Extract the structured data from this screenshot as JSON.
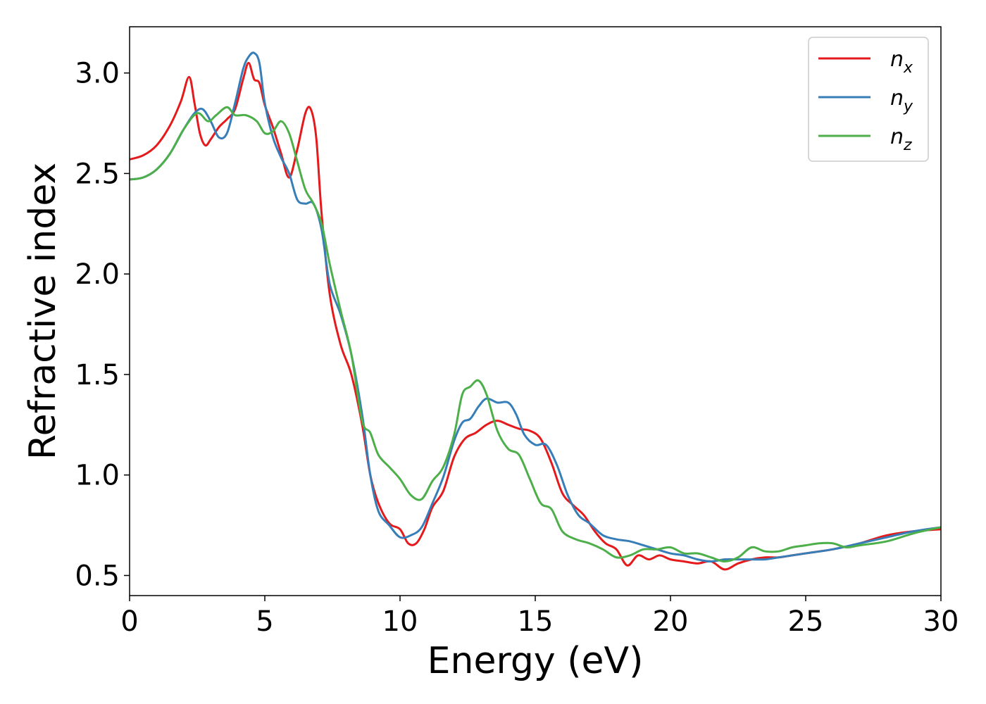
{
  "chart_data": {
    "type": "line",
    "title": "",
    "xlabel": "Energy (eV)",
    "ylabel": "Refractive index",
    "xlim": [
      0,
      30
    ],
    "ylim": [
      0.4,
      3.23
    ],
    "xticks": [
      0,
      5,
      10,
      15,
      20,
      25,
      30
    ],
    "xtick_labels": [
      "0",
      "5",
      "10",
      "15",
      "20",
      "25",
      "30"
    ],
    "yticks": [
      0.5,
      1.0,
      1.5,
      2.0,
      2.5,
      3.0
    ],
    "ytick_labels": [
      "0.5",
      "1.0",
      "1.5",
      "2.0",
      "2.5",
      "3.0"
    ],
    "grid": false,
    "legend_position": "top-right",
    "series": [
      {
        "name": "n",
        "subscript": "x",
        "color": "#e41a1c",
        "x": [
          0,
          0.5,
          1,
          1.5,
          1.9,
          2.2,
          2.4,
          2.6,
          2.8,
          3.0,
          3.3,
          3.6,
          3.9,
          4.2,
          4.4,
          4.6,
          4.8,
          5.0,
          5.3,
          5.6,
          5.9,
          6.2,
          6.5,
          6.7,
          6.9,
          7.1,
          7.4,
          7.8,
          8.2,
          8.6,
          8.9,
          9.2,
          9.6,
          10.0,
          10.3,
          10.6,
          10.9,
          11.2,
          11.6,
          12.0,
          12.4,
          12.8,
          13.2,
          13.6,
          14.0,
          14.4,
          14.8,
          15.2,
          15.6,
          16.0,
          16.4,
          16.8,
          17.2,
          17.6,
          18.0,
          18.4,
          18.8,
          19.2,
          19.6,
          20.0,
          20.5,
          21.0,
          21.5,
          22.0,
          22.5,
          23.0,
          23.5,
          24.0,
          24.5,
          25.0,
          25.5,
          26.0,
          27.0,
          28.0,
          29.0,
          30.0
        ],
        "y": [
          2.57,
          2.59,
          2.64,
          2.74,
          2.86,
          2.98,
          2.85,
          2.7,
          2.64,
          2.67,
          2.73,
          2.77,
          2.82,
          2.97,
          3.05,
          2.97,
          2.95,
          2.84,
          2.73,
          2.6,
          2.48,
          2.62,
          2.8,
          2.82,
          2.68,
          2.3,
          1.9,
          1.65,
          1.5,
          1.25,
          1.0,
          0.86,
          0.76,
          0.73,
          0.66,
          0.66,
          0.73,
          0.84,
          0.92,
          1.09,
          1.18,
          1.21,
          1.25,
          1.27,
          1.25,
          1.23,
          1.22,
          1.18,
          1.06,
          0.91,
          0.85,
          0.8,
          0.72,
          0.66,
          0.63,
          0.55,
          0.6,
          0.58,
          0.6,
          0.58,
          0.57,
          0.56,
          0.57,
          0.53,
          0.56,
          0.58,
          0.59,
          0.59,
          0.6,
          0.61,
          0.62,
          0.63,
          0.66,
          0.7,
          0.72,
          0.73
        ]
      },
      {
        "name": "n",
        "subscript": "y",
        "color": "#377eb8",
        "x": [
          0,
          0.5,
          1,
          1.5,
          2.0,
          2.4,
          2.7,
          3.0,
          3.3,
          3.6,
          3.9,
          4.2,
          4.4,
          4.6,
          4.8,
          5.0,
          5.3,
          5.6,
          5.9,
          6.2,
          6.5,
          6.8,
          7.1,
          7.4,
          7.8,
          8.2,
          8.6,
          8.9,
          9.2,
          9.6,
          10.0,
          10.4,
          10.8,
          11.2,
          11.6,
          12.0,
          12.3,
          12.6,
          12.9,
          13.2,
          13.6,
          14.0,
          14.3,
          14.6,
          15.0,
          15.4,
          15.8,
          16.2,
          16.6,
          17.0,
          17.5,
          18.0,
          18.5,
          19.0,
          19.5,
          20.0,
          20.5,
          21.0,
          21.5,
          22.0,
          22.5,
          23.0,
          23.5,
          24.0,
          25.0,
          26.0,
          27.0,
          28.0,
          29.0,
          30.0
        ],
        "y": [
          2.47,
          2.48,
          2.52,
          2.6,
          2.72,
          2.8,
          2.82,
          2.76,
          2.68,
          2.7,
          2.85,
          3.02,
          3.08,
          3.1,
          3.05,
          2.85,
          2.68,
          2.58,
          2.5,
          2.37,
          2.35,
          2.35,
          2.22,
          1.95,
          1.8,
          1.6,
          1.3,
          1.0,
          0.82,
          0.75,
          0.69,
          0.7,
          0.74,
          0.86,
          0.99,
          1.17,
          1.26,
          1.28,
          1.34,
          1.38,
          1.36,
          1.36,
          1.3,
          1.2,
          1.15,
          1.15,
          1.05,
          0.9,
          0.8,
          0.76,
          0.7,
          0.68,
          0.67,
          0.65,
          0.63,
          0.61,
          0.6,
          0.58,
          0.57,
          0.58,
          0.58,
          0.58,
          0.58,
          0.59,
          0.61,
          0.63,
          0.66,
          0.69,
          0.72,
          0.74
        ]
      },
      {
        "name": "n",
        "subscript": "z",
        "color": "#4daf4a",
        "x": [
          0,
          0.5,
          1,
          1.5,
          2.0,
          2.5,
          2.9,
          3.2,
          3.6,
          3.9,
          4.3,
          4.7,
          5.0,
          5.3,
          5.6,
          5.9,
          6.2,
          6.5,
          6.8,
          7.1,
          7.4,
          7.8,
          8.2,
          8.6,
          8.9,
          9.2,
          9.6,
          10.0,
          10.4,
          10.8,
          11.2,
          11.6,
          12.0,
          12.3,
          12.6,
          12.9,
          13.2,
          13.6,
          14.0,
          14.4,
          14.8,
          15.2,
          15.6,
          16.0,
          16.5,
          17.0,
          17.5,
          18.0,
          18.5,
          19.0,
          19.5,
          20.0,
          20.5,
          21.0,
          21.5,
          22.0,
          22.5,
          23.0,
          23.5,
          24.0,
          24.5,
          25.0,
          25.5,
          26.0,
          26.5,
          27.0,
          28.0,
          29.0,
          30.0
        ],
        "y": [
          2.47,
          2.48,
          2.52,
          2.6,
          2.72,
          2.8,
          2.76,
          2.79,
          2.83,
          2.79,
          2.79,
          2.76,
          2.7,
          2.71,
          2.76,
          2.7,
          2.56,
          2.42,
          2.35,
          2.25,
          2.05,
          1.82,
          1.6,
          1.27,
          1.21,
          1.1,
          1.04,
          0.98,
          0.9,
          0.88,
          0.97,
          1.04,
          1.2,
          1.4,
          1.44,
          1.47,
          1.4,
          1.22,
          1.13,
          1.1,
          0.98,
          0.86,
          0.83,
          0.72,
          0.68,
          0.66,
          0.63,
          0.59,
          0.6,
          0.63,
          0.63,
          0.64,
          0.61,
          0.61,
          0.59,
          0.57,
          0.59,
          0.64,
          0.62,
          0.62,
          0.64,
          0.65,
          0.66,
          0.66,
          0.64,
          0.65,
          0.67,
          0.71,
          0.74
        ]
      }
    ]
  }
}
